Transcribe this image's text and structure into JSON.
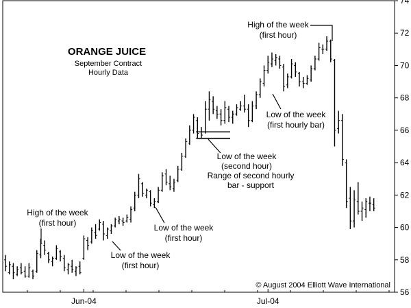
{
  "chart_data": {
    "type": "ohlc",
    "title": "ORANGE JUICE",
    "subtitle_lines": [
      "September Contract",
      "Hourly Data"
    ],
    "copyright": "© August 2004 Elliott Wave International",
    "y_axis": {
      "side": "right",
      "ylim": [
        56,
        74
      ],
      "ticks": [
        56,
        58,
        60,
        62,
        64,
        66,
        68,
        70,
        72,
        74
      ]
    },
    "x_axis": {
      "tick_labels": [
        "Jun-04",
        "Jul-04"
      ],
      "tick_index": [
        20,
        67
      ]
    },
    "bar_color": "#000000",
    "bars": [
      {
        "h": 58.3,
        "l": 57.3,
        "o": 58.0,
        "c": 57.6
      },
      {
        "h": 57.9,
        "l": 57.1,
        "o": 57.2,
        "c": 57.7
      },
      {
        "h": 57.8,
        "l": 56.8,
        "o": 57.6,
        "c": 57.2
      },
      {
        "h": 57.6,
        "l": 57.0,
        "o": 57.1,
        "c": 57.4
      },
      {
        "h": 57.8,
        "l": 57.1,
        "o": 57.5,
        "c": 57.2
      },
      {
        "h": 57.6,
        "l": 56.9,
        "o": 57.3,
        "c": 57.0
      },
      {
        "h": 57.8,
        "l": 56.9,
        "o": 57.0,
        "c": 57.5
      },
      {
        "h": 57.4,
        "l": 56.8,
        "o": 57.3,
        "c": 57.0
      },
      {
        "h": 58.6,
        "l": 57.2,
        "o": 57.3,
        "c": 58.4
      },
      {
        "h": 59.3,
        "l": 58.1,
        "o": 58.3,
        "c": 59.0
      },
      {
        "h": 59.2,
        "l": 58.3,
        "o": 58.9,
        "c": 58.6
      },
      {
        "h": 58.5,
        "l": 57.8,
        "o": 58.4,
        "c": 58.0
      },
      {
        "h": 58.2,
        "l": 57.6,
        "o": 57.9,
        "c": 58.1
      },
      {
        "h": 58.9,
        "l": 58.0,
        "o": 58.1,
        "c": 58.7
      },
      {
        "h": 58.6,
        "l": 57.9,
        "o": 58.5,
        "c": 58.2
      },
      {
        "h": 58.3,
        "l": 57.3,
        "o": 58.1,
        "c": 57.5
      },
      {
        "h": 57.8,
        "l": 57.1,
        "o": 57.4,
        "c": 57.7
      },
      {
        "h": 58.0,
        "l": 57.2,
        "o": 57.6,
        "c": 57.4
      },
      {
        "h": 57.6,
        "l": 57.0,
        "o": 57.3,
        "c": 57.5
      },
      {
        "h": 57.9,
        "l": 57.1,
        "o": 57.6,
        "c": 57.2
      },
      {
        "h": 59.5,
        "l": 58.0,
        "o": 58.1,
        "c": 59.3
      },
      {
        "h": 59.4,
        "l": 58.6,
        "o": 59.2,
        "c": 58.9
      },
      {
        "h": 60.0,
        "l": 59.0,
        "o": 59.1,
        "c": 59.8
      },
      {
        "h": 60.2,
        "l": 59.3,
        "o": 59.7,
        "c": 59.5
      },
      {
        "h": 60.5,
        "l": 59.8,
        "o": 59.9,
        "c": 60.3
      },
      {
        "h": 60.4,
        "l": 59.2,
        "o": 60.2,
        "c": 59.6
      },
      {
        "h": 60.0,
        "l": 59.3,
        "o": 59.5,
        "c": 59.9
      },
      {
        "h": 60.2,
        "l": 59.6,
        "o": 59.8,
        "c": 60.1
      },
      {
        "h": 60.6,
        "l": 60.0,
        "o": 60.1,
        "c": 60.5
      },
      {
        "h": 60.7,
        "l": 60.2,
        "o": 60.4,
        "c": 60.5
      },
      {
        "h": 60.6,
        "l": 60.1,
        "o": 60.4,
        "c": 60.3
      },
      {
        "h": 60.8,
        "l": 60.3,
        "o": 60.4,
        "c": 60.6
      },
      {
        "h": 61.3,
        "l": 60.3,
        "o": 60.5,
        "c": 61.1
      },
      {
        "h": 62.2,
        "l": 61.0,
        "o": 61.2,
        "c": 62.0
      },
      {
        "h": 63.3,
        "l": 61.8,
        "o": 62.0,
        "c": 63.0
      },
      {
        "h": 62.8,
        "l": 61.9,
        "o": 62.7,
        "c": 62.1
      },
      {
        "h": 62.4,
        "l": 61.8,
        "o": 62.0,
        "c": 62.3
      },
      {
        "h": 62.3,
        "l": 61.3,
        "o": 62.2,
        "c": 61.5
      },
      {
        "h": 61.8,
        "l": 61.2,
        "o": 61.4,
        "c": 61.6
      },
      {
        "h": 62.5,
        "l": 61.5,
        "o": 61.6,
        "c": 62.3
      },
      {
        "h": 63.4,
        "l": 62.2,
        "o": 62.3,
        "c": 63.2
      },
      {
        "h": 63.6,
        "l": 62.6,
        "o": 63.3,
        "c": 62.8
      },
      {
        "h": 63.2,
        "l": 62.3,
        "o": 62.7,
        "c": 62.5
      },
      {
        "h": 63.0,
        "l": 62.2,
        "o": 62.4,
        "c": 62.8
      },
      {
        "h": 63.8,
        "l": 62.8,
        "o": 62.9,
        "c": 63.6
      },
      {
        "h": 64.6,
        "l": 63.5,
        "o": 63.6,
        "c": 64.4
      },
      {
        "h": 65.5,
        "l": 64.3,
        "o": 64.4,
        "c": 65.3
      },
      {
        "h": 66.3,
        "l": 65.1,
        "o": 65.2,
        "c": 66.0
      },
      {
        "h": 67.0,
        "l": 65.8,
        "o": 66.0,
        "c": 66.8
      },
      {
        "h": 66.8,
        "l": 65.5,
        "o": 66.6,
        "c": 65.8
      },
      {
        "h": 66.2,
        "l": 65.5,
        "o": 65.9,
        "c": 65.7
      },
      {
        "h": 67.8,
        "l": 65.8,
        "o": 65.9,
        "c": 67.3
      },
      {
        "h": 68.4,
        "l": 66.6,
        "o": 67.3,
        "c": 67.9
      },
      {
        "h": 68.1,
        "l": 67.0,
        "o": 67.8,
        "c": 67.3
      },
      {
        "h": 67.5,
        "l": 66.7,
        "o": 67.2,
        "c": 67.0
      },
      {
        "h": 67.3,
        "l": 66.3,
        "o": 67.0,
        "c": 66.6
      },
      {
        "h": 67.8,
        "l": 66.4,
        "o": 66.6,
        "c": 67.4
      },
      {
        "h": 67.5,
        "l": 66.5,
        "o": 67.3,
        "c": 66.8
      },
      {
        "h": 67.2,
        "l": 66.4,
        "o": 66.8,
        "c": 67.0
      },
      {
        "h": 67.6,
        "l": 66.9,
        "o": 67.0,
        "c": 67.4
      },
      {
        "h": 67.8,
        "l": 67.2,
        "o": 67.3,
        "c": 67.5
      },
      {
        "h": 68.2,
        "l": 67.1,
        "o": 67.5,
        "c": 67.3
      },
      {
        "h": 67.6,
        "l": 66.2,
        "o": 67.3,
        "c": 66.6
      },
      {
        "h": 67.8,
        "l": 66.5,
        "o": 66.6,
        "c": 67.5
      },
      {
        "h": 68.4,
        "l": 67.3,
        "o": 67.5,
        "c": 68.2
      },
      {
        "h": 69.2,
        "l": 68.0,
        "o": 68.2,
        "c": 69.0
      },
      {
        "h": 70.0,
        "l": 68.7,
        "o": 68.9,
        "c": 69.7
      },
      {
        "h": 70.6,
        "l": 69.5,
        "o": 69.7,
        "c": 70.2
      },
      {
        "h": 70.8,
        "l": 69.9,
        "o": 70.1,
        "c": 70.4
      },
      {
        "h": 70.7,
        "l": 70.0,
        "o": 70.3,
        "c": 70.5
      },
      {
        "h": 70.6,
        "l": 69.8,
        "o": 70.4,
        "c": 70.0
      },
      {
        "h": 70.1,
        "l": 68.4,
        "o": 69.9,
        "c": 68.7
      },
      {
        "h": 69.5,
        "l": 68.6,
        "o": 68.8,
        "c": 69.3
      },
      {
        "h": 70.4,
        "l": 69.2,
        "o": 69.3,
        "c": 70.1
      },
      {
        "h": 70.2,
        "l": 69.3,
        "o": 70.0,
        "c": 69.6
      },
      {
        "h": 69.6,
        "l": 68.7,
        "o": 69.5,
        "c": 69.0
      },
      {
        "h": 69.3,
        "l": 68.6,
        "o": 69.0,
        "c": 68.9
      },
      {
        "h": 69.4,
        "l": 68.8,
        "o": 68.9,
        "c": 69.2
      },
      {
        "h": 70.0,
        "l": 69.0,
        "o": 69.1,
        "c": 69.8
      },
      {
        "h": 70.6,
        "l": 69.7,
        "o": 69.8,
        "c": 70.4
      },
      {
        "h": 71.4,
        "l": 70.3,
        "o": 70.4,
        "c": 71.1
      },
      {
        "h": 71.3,
        "l": 70.7,
        "o": 71.0,
        "c": 71.0
      },
      {
        "h": 71.8,
        "l": 70.9,
        "o": 71.0,
        "c": 71.5
      },
      {
        "h": 71.6,
        "l": 70.2,
        "o": 71.5,
        "c": 70.4
      },
      {
        "h": 70.4,
        "l": 65.0,
        "o": 70.3,
        "c": 66.0
      },
      {
        "h": 67.2,
        "l": 65.8,
        "o": 66.1,
        "c": 66.6
      },
      {
        "h": 67.0,
        "l": 63.8,
        "o": 66.6,
        "c": 64.2
      },
      {
        "h": 64.2,
        "l": 61.2,
        "o": 64.0,
        "c": 61.6
      },
      {
        "h": 62.5,
        "l": 59.9,
        "o": 61.8,
        "c": 60.4
      },
      {
        "h": 62.3,
        "l": 60.0,
        "o": 60.4,
        "c": 61.7
      },
      {
        "h": 62.8,
        "l": 60.8,
        "o": 61.6,
        "c": 61.0
      },
      {
        "h": 61.6,
        "l": 60.4,
        "o": 61.0,
        "c": 61.2
      },
      {
        "h": 61.8,
        "l": 60.6,
        "o": 61.1,
        "c": 61.6
      },
      {
        "h": 61.9,
        "l": 61.0,
        "o": 61.5,
        "c": 61.5
      },
      {
        "h": 61.8,
        "l": 61.0,
        "o": 61.4,
        "c": 61.2
      }
    ],
    "support_lines": [
      {
        "y": 65.9,
        "x_from": 49,
        "x_to": 57
      },
      {
        "y": 65.5,
        "x_from": 49,
        "x_to": 57
      }
    ],
    "annotations": [
      {
        "key": "a1",
        "lines": [
          "High of the week",
          "(first hour)"
        ]
      },
      {
        "key": "a2",
        "lines": [
          "Low of the week",
          "(first hour)"
        ]
      },
      {
        "key": "a3",
        "lines": [
          "Low of the week",
          "(first hour)"
        ]
      },
      {
        "key": "a4",
        "lines": [
          "Low of the week",
          "(second hour)"
        ]
      },
      {
        "key": "a5",
        "lines": [
          "Range of second hourly",
          "bar - support"
        ]
      },
      {
        "key": "a6",
        "lines": [
          "Low of the week",
          "(first hourly bar)"
        ]
      },
      {
        "key": "a7",
        "lines": [
          "High of the week",
          "(first hour)"
        ]
      }
    ]
  }
}
